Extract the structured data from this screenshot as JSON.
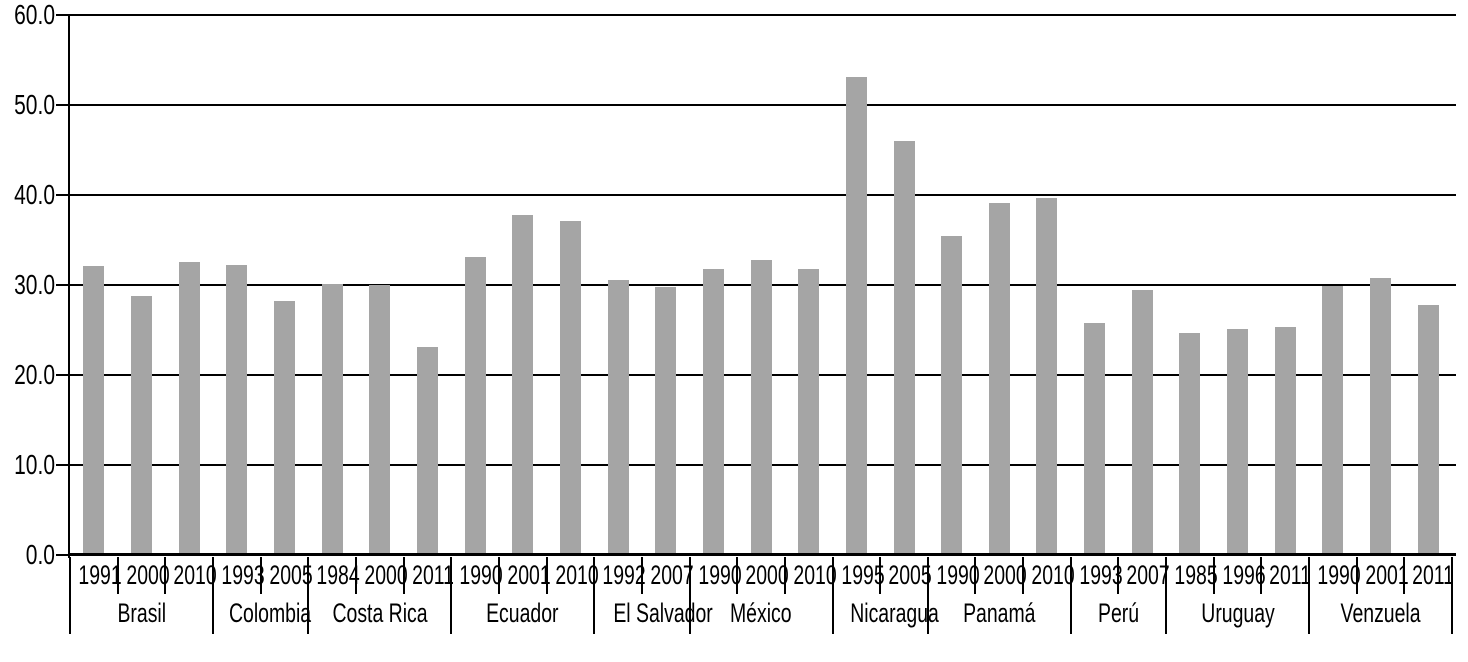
{
  "chart_data": {
    "type": "bar",
    "title": "",
    "xlabel": "",
    "ylabel": "",
    "ylim": [
      0,
      60
    ],
    "ytick_step": 10,
    "ytick_labels": [
      "0.0",
      "10.0",
      "20.0",
      "30.0",
      "40.0",
      "50.0",
      "60.0"
    ],
    "grid": true,
    "legend": false,
    "bar_color": "#a5a5a5",
    "axis_color": "#000000",
    "groups": [
      {
        "country": "Brasil",
        "bars": [
          {
            "year": "1991",
            "value": 31.9
          },
          {
            "year": "2000",
            "value": 28.5
          },
          {
            "year": "2010",
            "value": 32.3
          }
        ]
      },
      {
        "country": "Colombia",
        "bars": [
          {
            "year": "1993",
            "value": 32.0
          },
          {
            "year": "2005",
            "value": 28.0
          }
        ]
      },
      {
        "country": "Costa Rica",
        "bars": [
          {
            "year": "1984",
            "value": 29.9
          },
          {
            "year": "2000",
            "value": 29.8
          },
          {
            "year": "2011",
            "value": 22.9
          }
        ]
      },
      {
        "country": "Ecuador",
        "bars": [
          {
            "year": "1990",
            "value": 32.9
          },
          {
            "year": "2001",
            "value": 37.5
          },
          {
            "year": "2010",
            "value": 36.9
          }
        ]
      },
      {
        "country": "El Salvador",
        "bars": [
          {
            "year": "1992",
            "value": 30.3
          },
          {
            "year": "2007",
            "value": 29.5
          }
        ]
      },
      {
        "country": "México",
        "bars": [
          {
            "year": "1990",
            "value": 31.5
          },
          {
            "year": "2000",
            "value": 32.5
          },
          {
            "year": "2010",
            "value": 31.6
          }
        ]
      },
      {
        "country": "Nicaragua",
        "bars": [
          {
            "year": "1995",
            "value": 52.9
          },
          {
            "year": "2005",
            "value": 45.8
          }
        ]
      },
      {
        "country": "Panamá",
        "bars": [
          {
            "year": "1990",
            "value": 35.2
          },
          {
            "year": "2000",
            "value": 38.9
          },
          {
            "year": "2010",
            "value": 39.4
          }
        ]
      },
      {
        "country": "Perú",
        "bars": [
          {
            "year": "1993",
            "value": 25.5
          },
          {
            "year": "2007",
            "value": 29.2
          }
        ]
      },
      {
        "country": "Uruguay",
        "bars": [
          {
            "year": "1985",
            "value": 24.4
          },
          {
            "year": "1996",
            "value": 24.9
          },
          {
            "year": "2011",
            "value": 25.1
          }
        ]
      },
      {
        "country": "Venzuela",
        "bars": [
          {
            "year": "1990",
            "value": 29.7
          },
          {
            "year": "2001",
            "value": 30.6
          },
          {
            "year": "2011",
            "value": 27.5
          }
        ]
      }
    ]
  }
}
